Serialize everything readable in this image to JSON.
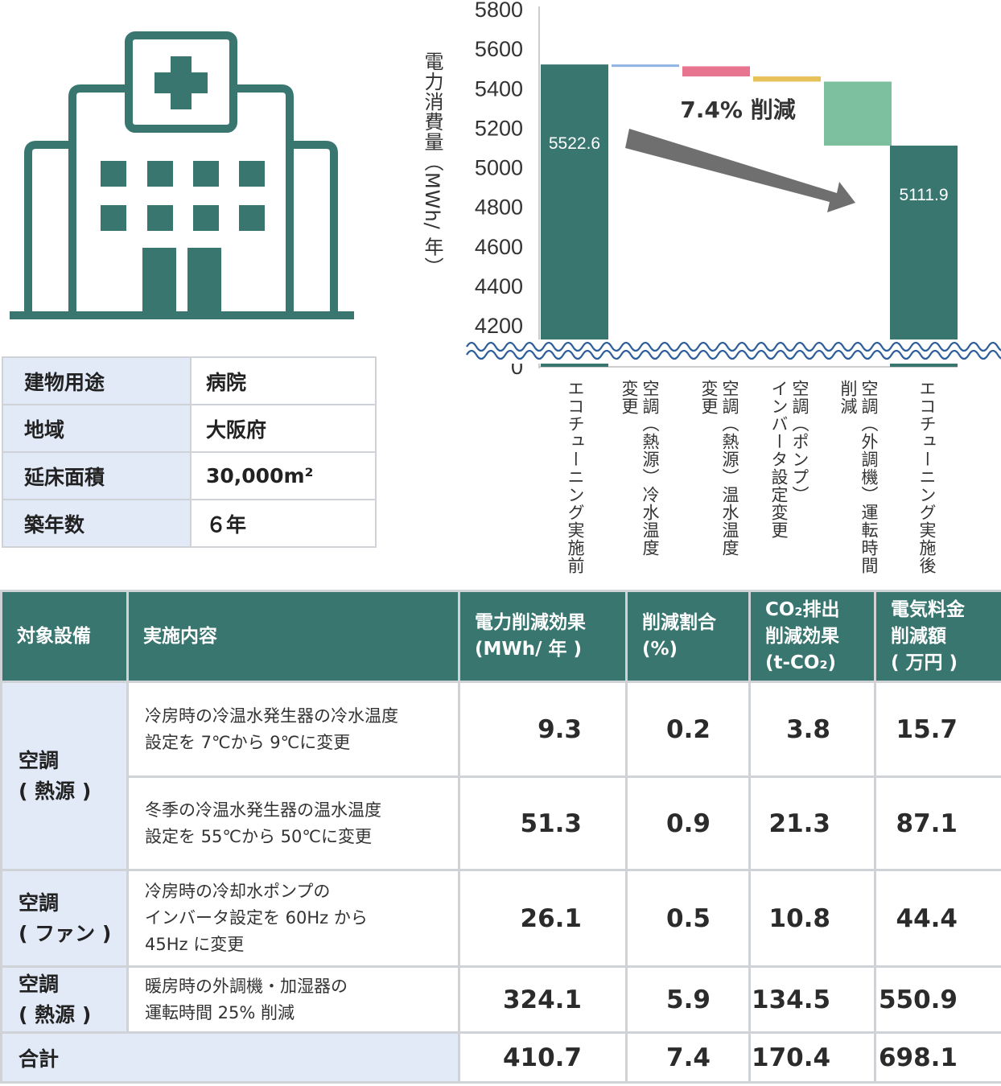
{
  "building": {
    "rows": [
      {
        "key": "建物用途",
        "value": "病院"
      },
      {
        "key": "地域",
        "value": "大阪府"
      },
      {
        "key": "延床面積",
        "value": "30,000m²"
      },
      {
        "key": "築年数",
        "value": "６年"
      }
    ]
  },
  "colors": {
    "accent": "#3a7670",
    "label_bg": "#e2eaf8",
    "border": "#cfd3d8",
    "step1": "#8fb4e3",
    "step2": "#e8758f",
    "step3": "#e7c15a",
    "step4": "#7cc0a0",
    "arrow": "#6f6f6f",
    "icon": "#3a7670"
  },
  "icons": {
    "building": "hospital-icon"
  },
  "chart_data": {
    "type": "waterfall",
    "ylabel": "電力消費量（MWh/ 年）",
    "y_ticks": [
      "5800",
      "5600",
      "5400",
      "5200",
      "5000",
      "4800",
      "4600",
      "4400",
      "4200",
      "0"
    ],
    "ylim": [
      4200,
      5800
    ],
    "axis_break": true,
    "categories": [
      [
        "エコチューニング実施前"
      ],
      [
        "空調（熱源）冷水温度",
        "変更"
      ],
      [
        "空調（熱源）温水温度",
        "変更"
      ],
      [
        "空調（ポンプ）",
        "インバータ設定変更"
      ],
      [
        "空調（外調機）運転時間",
        "削減"
      ],
      [
        "エコチューニング実施後"
      ]
    ],
    "values": [
      5522.6,
      -9.3,
      -51.3,
      -26.1,
      -324.1,
      5111.9
    ],
    "bar_labels": [
      "5522.6",
      "",
      "",
      "",
      "",
      "5111.9"
    ],
    "annotation": "7.4% 削減"
  },
  "table": {
    "headers": [
      [
        "対象設備"
      ],
      [
        "実施内容"
      ],
      [
        "電力削減効果",
        "(MWh/ 年 )"
      ],
      [
        "削減割合",
        "(%)"
      ],
      [
        "CO₂排出",
        "削減効果",
        "(t-CO₂)"
      ],
      [
        "電気料金",
        "削減額",
        "( 万円 )"
      ]
    ],
    "groups": [
      {
        "equipment": [
          "空調",
          "( 熱源 )"
        ]
      },
      {
        "equipment": [
          "空調",
          "( ファン )"
        ]
      },
      {
        "equipment": [
          "空調",
          "( 熱源 )"
        ]
      }
    ],
    "rows": [
      {
        "desc": [
          "冷房時の冷温水発生器の冷水温度",
          "設定を 7℃から 9℃に変更"
        ],
        "power": "9.3",
        "ratio": "0.2",
        "co2": "3.8",
        "cost": "15.7"
      },
      {
        "desc": [
          "冬季の冷温水発生器の温水温度",
          "設定を 55℃から 50℃に変更"
        ],
        "power": "51.3",
        "ratio": "0.9",
        "co2": "21.3",
        "cost": "87.1"
      },
      {
        "desc": [
          "冷房時の冷却水ポンプの",
          "インバータ設定を 60Hz から",
          "45Hz に変更"
        ],
        "power": "26.1",
        "ratio": "0.5",
        "co2": "10.8",
        "cost": "44.4"
      },
      {
        "desc": [
          "暖房時の外調機・加湿器の",
          "運転時間 25% 削減"
        ],
        "power": "324.1",
        "ratio": "5.9",
        "co2": "134.5",
        "cost": "550.9"
      }
    ],
    "total": {
      "label": "合計",
      "power": "410.7",
      "ratio": "7.4",
      "co2": "170.4",
      "cost": "698.1"
    }
  }
}
